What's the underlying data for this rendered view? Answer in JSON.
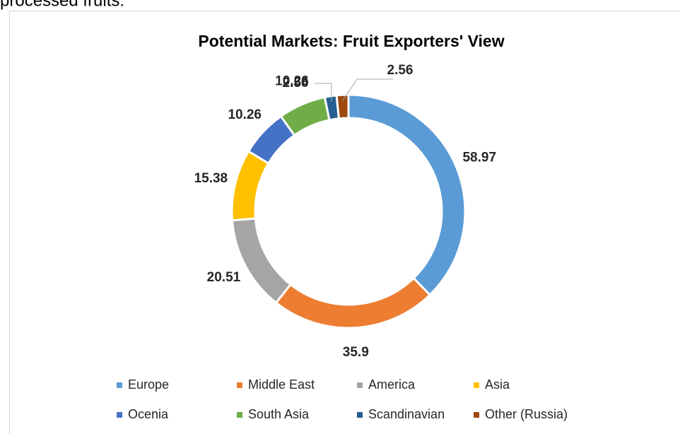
{
  "page_text": "processed fruits.",
  "chart_data": {
    "type": "donut",
    "title": "Potential Markets: Fruit Exporters' View",
    "categories": [
      "Europe",
      "Middle East",
      "America",
      "Asia",
      "Ocenia",
      "South Asia",
      "Scandinavian",
      "Other (Russia)"
    ],
    "values": [
      58.97,
      35.9,
      20.51,
      15.38,
      10.26,
      10.26,
      2.56,
      2.56
    ],
    "colors": [
      "#5b9bd5",
      "#ed7d31",
      "#a5a5a5",
      "#ffc000",
      "#4472c4",
      "#70ad47",
      "#255e91",
      "#9e480e"
    ],
    "legend": "bottom"
  }
}
